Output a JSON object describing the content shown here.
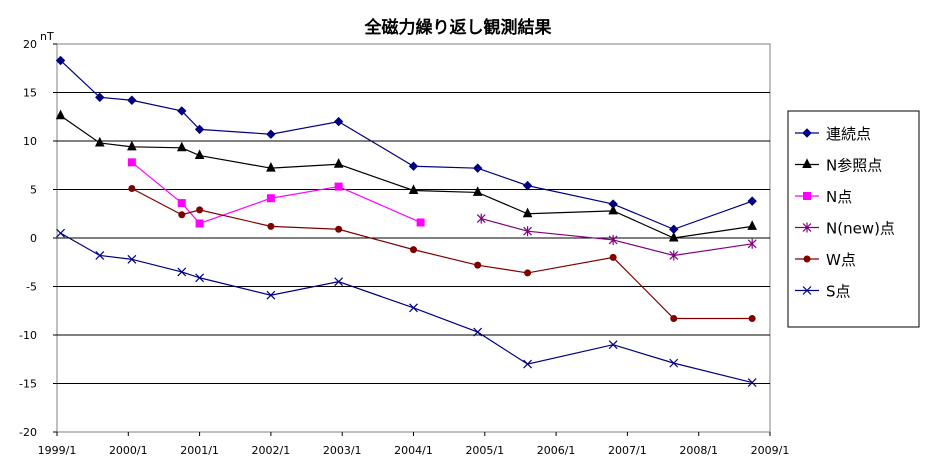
{
  "chart_data": {
    "type": "line",
    "title": "全磁力繰り返し観測結果",
    "y_unit": "nT",
    "ylim": [
      -20,
      20
    ],
    "y_ticks": [
      20,
      15,
      10,
      5,
      0,
      -5,
      -10,
      -15,
      -20
    ],
    "y_tick_labels": [
      "20",
      "15",
      "10",
      "5",
      "0",
      "-5",
      "-10",
      "-15",
      "-20"
    ],
    "xlim": [
      1999.0,
      2009.0
    ],
    "x_ticks": [
      1999,
      2000,
      2001,
      2002,
      2003,
      2004,
      2005,
      2006,
      2007,
      2008,
      2009
    ],
    "x_tick_labels": [
      "1999/1",
      "2000/1",
      "2001/1",
      "2002/1",
      "2003/1",
      "2004/1",
      "2005/1",
      "2006/1",
      "2007/1",
      "2008/1",
      "2009/1"
    ],
    "grid": "horizontal",
    "legend_position": "right",
    "series": [
      {
        "name": "連続点",
        "color": "#000080",
        "marker": "diamond",
        "points": [
          [
            1999.05,
            18.3
          ],
          [
            1999.6,
            14.5
          ],
          [
            2000.05,
            14.2
          ],
          [
            2000.75,
            13.1
          ],
          [
            2001.0,
            11.2
          ],
          [
            2002.0,
            10.7
          ],
          [
            2002.95,
            12.0
          ],
          [
            2004.0,
            7.4
          ],
          [
            2004.9,
            7.2
          ],
          [
            2005.6,
            5.4
          ],
          [
            2006.8,
            3.5
          ],
          [
            2007.65,
            0.9
          ],
          [
            2008.75,
            3.8
          ]
        ]
      },
      {
        "name": "N参照点",
        "color": "#000000",
        "marker": "triangle",
        "points": [
          [
            1999.05,
            12.6
          ],
          [
            1999.6,
            9.8
          ],
          [
            2000.05,
            9.4
          ],
          [
            2000.75,
            9.3
          ],
          [
            2001.0,
            8.5
          ],
          [
            2002.0,
            7.2
          ],
          [
            2002.95,
            7.6
          ],
          [
            2004.0,
            4.9
          ],
          [
            2004.9,
            4.7
          ],
          [
            2005.6,
            2.5
          ],
          [
            2006.8,
            2.8
          ],
          [
            2007.65,
            0.0
          ],
          [
            2008.75,
            1.2
          ]
        ]
      },
      {
        "name": "N点",
        "color": "#ff00ff",
        "marker": "square",
        "points": [
          [
            2000.05,
            7.8
          ],
          [
            2000.75,
            3.6
          ],
          [
            2001.0,
            1.5
          ],
          [
            2002.0,
            4.1
          ],
          [
            2002.95,
            5.3
          ],
          [
            2004.1,
            1.6
          ]
        ]
      },
      {
        "name": "N(new)点",
        "color": "#800080",
        "marker": "star",
        "points": [
          [
            2004.95,
            2.0
          ],
          [
            2005.6,
            0.7
          ],
          [
            2006.8,
            -0.2
          ],
          [
            2007.65,
            -1.8
          ],
          [
            2008.75,
            -0.6
          ]
        ]
      },
      {
        "name": "W点",
        "color": "#800000",
        "marker": "circle",
        "points": [
          [
            2000.05,
            5.1
          ],
          [
            2000.75,
            2.4
          ],
          [
            2001.0,
            2.9
          ],
          [
            2002.0,
            1.2
          ],
          [
            2002.95,
            0.9
          ],
          [
            2004.0,
            -1.2
          ],
          [
            2004.9,
            -2.8
          ],
          [
            2005.6,
            -3.6
          ],
          [
            2006.8,
            -2.0
          ],
          [
            2007.65,
            -8.3
          ],
          [
            2008.75,
            -8.3
          ]
        ]
      },
      {
        "name": "S点",
        "color": "#000080",
        "marker": "x",
        "points": [
          [
            1999.05,
            0.5
          ],
          [
            1999.6,
            -1.8
          ],
          [
            2000.05,
            -2.2
          ],
          [
            2000.75,
            -3.5
          ],
          [
            2001.0,
            -4.1
          ],
          [
            2002.0,
            -5.9
          ],
          [
            2002.95,
            -4.5
          ],
          [
            2004.0,
            -7.2
          ],
          [
            2004.9,
            -9.7
          ],
          [
            2005.6,
            -13.0
          ],
          [
            2006.8,
            -11.0
          ],
          [
            2007.65,
            -12.9
          ],
          [
            2008.75,
            -14.9
          ]
        ]
      }
    ]
  }
}
